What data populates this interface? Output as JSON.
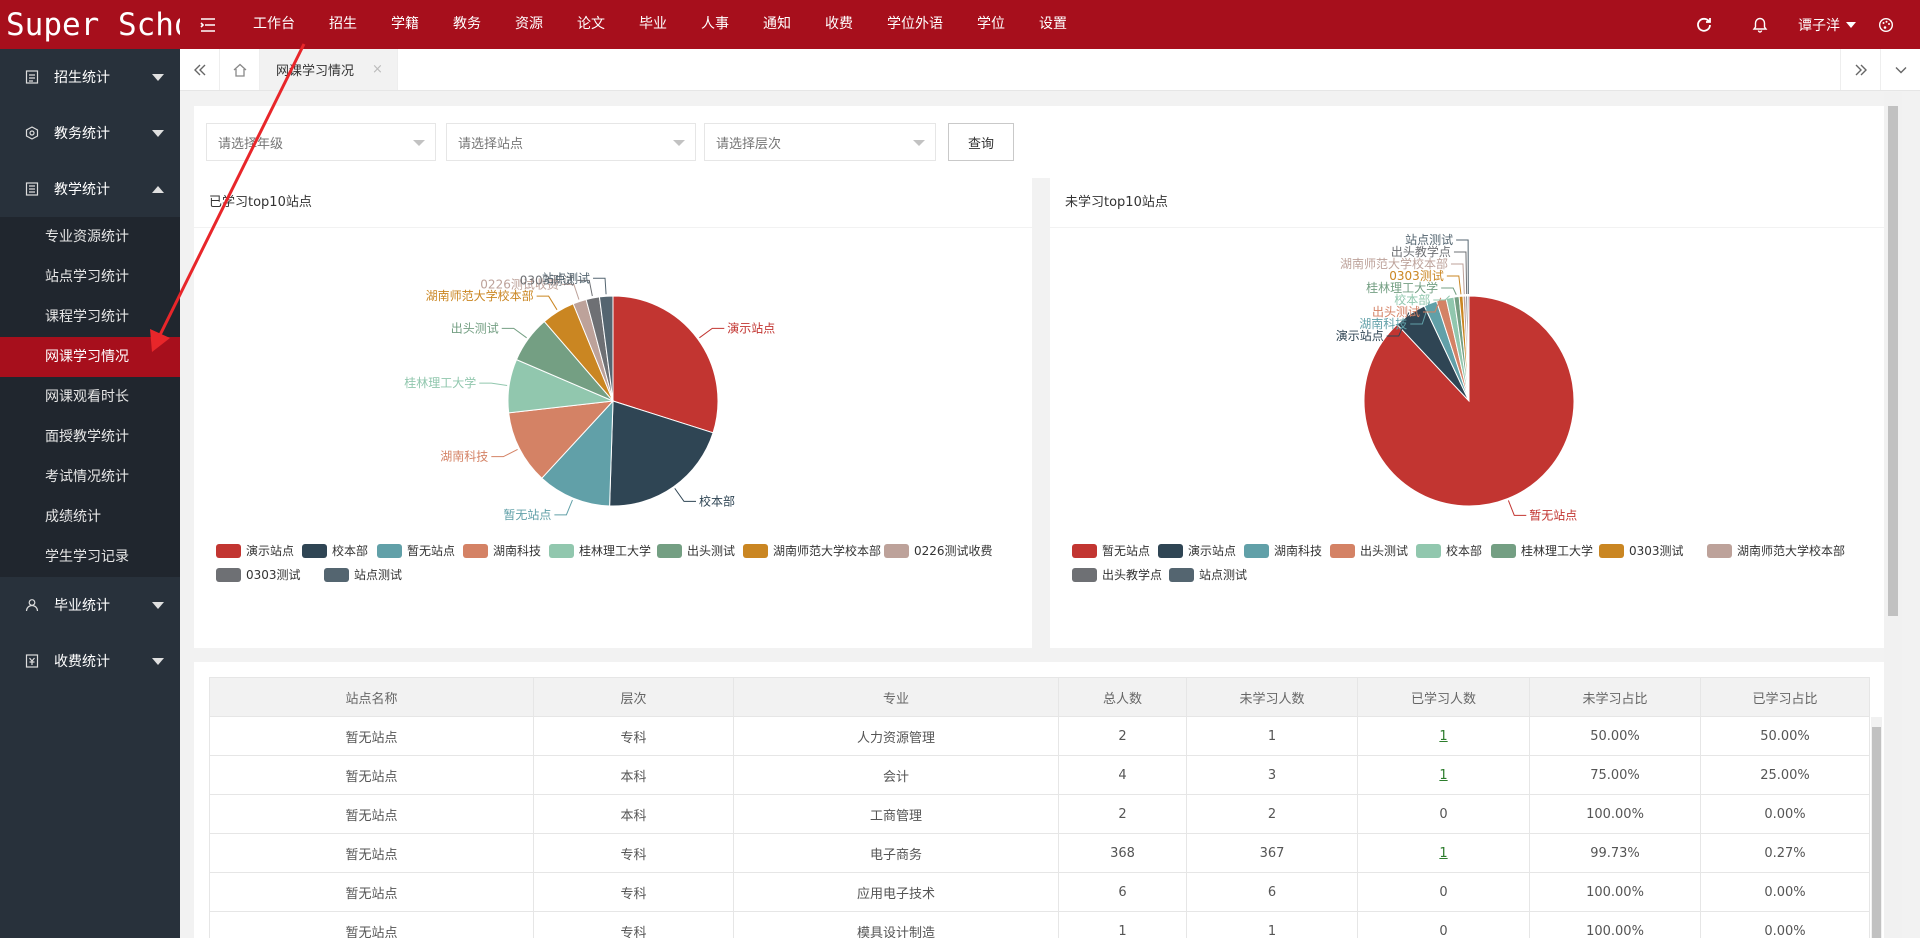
{
  "app": {
    "logo": "Super School"
  },
  "topnav": [
    "工作台",
    "招生",
    "学籍",
    "教务",
    "资源",
    "论文",
    "毕业",
    "人事",
    "通知",
    "收费",
    "学位外语",
    "学位",
    "设置"
  ],
  "user": {
    "name": "谭子洋"
  },
  "sidebar": {
    "groups": [
      {
        "label": "招生统计",
        "icon": "report-icon"
      },
      {
        "label": "教务统计",
        "icon": "settings-icon"
      },
      {
        "label": "教学统计",
        "icon": "document-icon"
      },
      {
        "label": "毕业统计",
        "icon": "person-icon"
      },
      {
        "label": "收费统计",
        "icon": "receipt-icon"
      }
    ],
    "teaching_items": [
      "专业资源统计",
      "站点学习统计",
      "课程学习统计",
      "网课学习情况",
      "网课观看时长",
      "面授教学统计",
      "考试情况统计",
      "成绩统计",
      "学生学习记录"
    ]
  },
  "tabs": {
    "active_tab": "网课学习情况",
    "close": "×"
  },
  "filters": {
    "grade_placeholder": "请选择年级",
    "site_placeholder": "请选择站点",
    "level_placeholder": "请选择层次",
    "query_label": "查询"
  },
  "colors": {
    "brand": "#a70f1c",
    "sidebar_bg": "#28313b",
    "palette": [
      "#c23531",
      "#2f4554",
      "#61a0a8",
      "#d48265",
      "#91c7ae",
      "#749f83",
      "#ca8622",
      "#bda29a",
      "#6e7074",
      "#546570"
    ]
  },
  "chart_data": [
    {
      "type": "pie",
      "title": "已学习top10站点",
      "legend": [
        "演示站点",
        "校本部",
        "暂无站点",
        "湖南科技",
        "桂林理工大学",
        "出头测试",
        "湖南师范大学校本部",
        "0226测试收费",
        "0303测试",
        "站点测试"
      ],
      "values": [
        29,
        20,
        11,
        11,
        8,
        7,
        5,
        2,
        2,
        2
      ],
      "legend_position": "bottom-left"
    },
    {
      "type": "pie",
      "title": "未学习top10站点",
      "legend": [
        "暂无站点",
        "演示站点",
        "湖南科技",
        "出头测试",
        "校本部",
        "桂林理工大学",
        "0303测试",
        "湖南师范大学校本部",
        "出头教学点",
        "站点测试"
      ],
      "values": [
        88,
        5,
        2,
        1.5,
        1.2,
        0.8,
        0.6,
        0.4,
        0.3,
        0.2
      ],
      "legend_position": "bottom-left"
    }
  ],
  "table": {
    "columns": [
      "站点名称",
      "层次",
      "专业",
      "总人数",
      "未学习人数",
      "已学习人数",
      "未学习占比",
      "已学习占比"
    ],
    "rows": [
      [
        "暂无站点",
        "专科",
        "人力资源管理",
        "2",
        "1",
        "1",
        "50.00%",
        "50.00%"
      ],
      [
        "暂无站点",
        "本科",
        "会计",
        "4",
        "3",
        "1",
        "75.00%",
        "25.00%"
      ],
      [
        "暂无站点",
        "本科",
        "工商管理",
        "2",
        "2",
        "0",
        "100.00%",
        "0.00%"
      ],
      [
        "暂无站点",
        "专科",
        "电子商务",
        "368",
        "367",
        "1",
        "99.73%",
        "0.27%"
      ],
      [
        "暂无站点",
        "专科",
        "应用电子技术",
        "6",
        "6",
        "0",
        "100.00%",
        "0.00%"
      ],
      [
        "暂无站点",
        "专科",
        "模具设计制造",
        "1",
        "1",
        "0",
        "100.00%",
        "0.00%"
      ]
    ]
  }
}
